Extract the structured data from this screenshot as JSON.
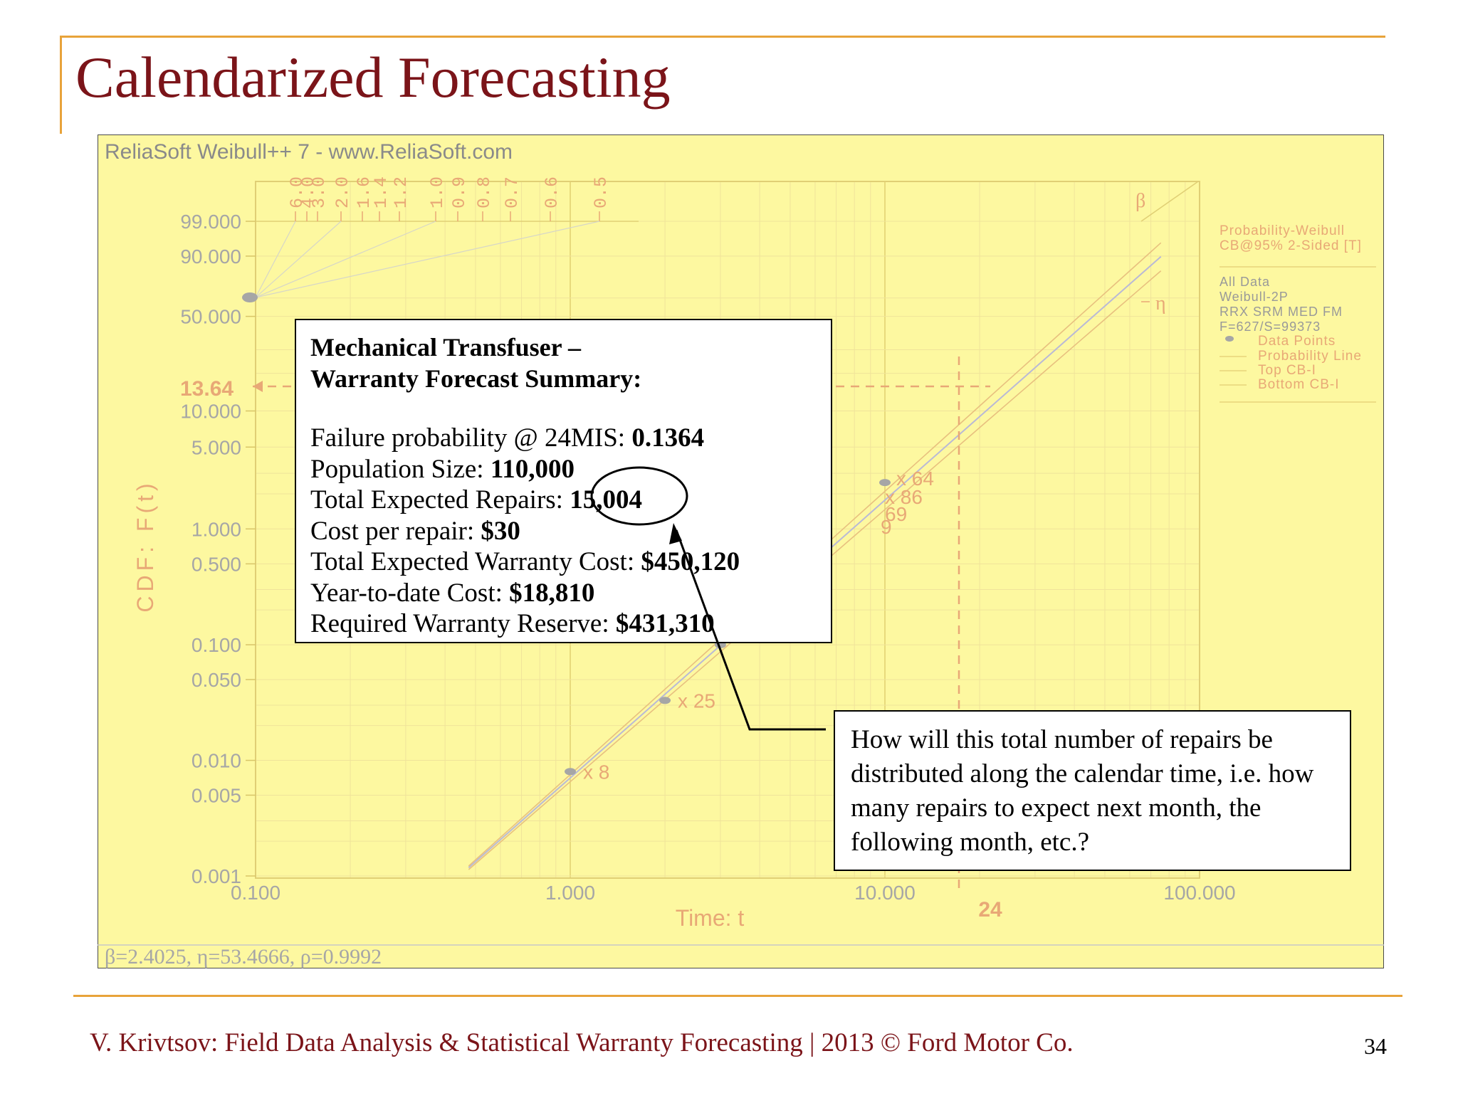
{
  "slide": {
    "title": "Calendarized Forecasting",
    "footer": "V. Krivtsov: Field Data Analysis & Statistical Warranty Forecasting |  2013 © Ford Motor Co.",
    "page_number": "34"
  },
  "colors": {
    "title": "#7b1419",
    "accent_rule": "#e8a33a",
    "plot_bg": "#fdf8a0",
    "plot_line": "#e8a876",
    "grid": "#e9d77e"
  },
  "summary": {
    "heading_line1": "Mechanical Transfuser –",
    "heading_line2": "Warranty Forecast Summary:",
    "rows": [
      {
        "label": "Failure probability @ 24MIS: ",
        "value": "0.1364"
      },
      {
        "label": "Population Size: ",
        "value": "110,000"
      },
      {
        "label": "Total Expected Repairs: ",
        "value": "15,004"
      },
      {
        "label": "Cost per repair: ",
        "value": "$30"
      },
      {
        "label": "Total Expected Warranty Cost: ",
        "value": "$450,120"
      },
      {
        "label": "Year-to-date Cost: ",
        "value": "$18,810"
      },
      {
        "label": "Required Warranty Reserve: ",
        "value": "$431,310"
      }
    ]
  },
  "question": "How will this total number of repairs be distributed along the calendar time, i.e. how many repairs to expect next month, the following month, etc.?",
  "chart_data": {
    "type": "line",
    "software_title": "ReliaSoft Weibull++ 7 - www.ReliaSoft.com",
    "xlabel": "Time: t",
    "ylabel": "CDF: F(t)",
    "x_scale": "log",
    "y_scale": "weibull-probability",
    "xlim": [
      0.1,
      100
    ],
    "ylim": [
      0.001,
      99
    ],
    "x_ticks": [
      "0.100",
      "1.000",
      "10.000",
      "100.000"
    ],
    "y_ticks": [
      "99.000",
      "90.000",
      "50.000",
      "10.000",
      "5.000",
      "1.000",
      "0.500",
      "0.100",
      "0.050",
      "0.010",
      "0.005",
      "0.001"
    ],
    "beta_scale_labels": [
      "6.0",
      "4.0",
      "3.0",
      "2.0",
      "1.6",
      "1.4",
      "1.2",
      "1.0",
      "0.9",
      "0.8",
      "0.7",
      "0.6",
      "0.5"
    ],
    "beta_symbol": "β",
    "eta_symbol": "η",
    "legend": {
      "position": "right",
      "header": [
        "Probability-Weibull",
        "CB@95% 2-Sided [T]"
      ],
      "info": [
        "All Data",
        "Weibull-2P",
        "RRX SRM MED FM",
        "F=627/S=99373"
      ],
      "entries": [
        "Data Points",
        "Probability Line",
        "Top CB-I",
        "Bottom CB-I"
      ]
    },
    "parameters_text": "β=2.4025, η=53.4666, ρ=0.9992",
    "annotation": {
      "x": 24,
      "y": 13.64,
      "x_label": "24",
      "y_label": "13.64"
    },
    "data_points": [
      {
        "x": 1,
        "y": 0.008,
        "label": "x 8"
      },
      {
        "x": 2,
        "y": 0.033,
        "label": "x 25"
      },
      {
        "x": 3,
        "y": 0.1,
        "label": ""
      },
      {
        "x": 10,
        "y": 2.5,
        "label": "x 64"
      },
      {
        "x": 10,
        "y": 2.5,
        "label": "x 86"
      },
      {
        "x": 10,
        "y": 2.5,
        "label": "69"
      },
      {
        "x": 10,
        "y": 2.5,
        "label": "9"
      }
    ],
    "probability_line": {
      "beta": 2.4025,
      "eta": 53.4666
    }
  }
}
